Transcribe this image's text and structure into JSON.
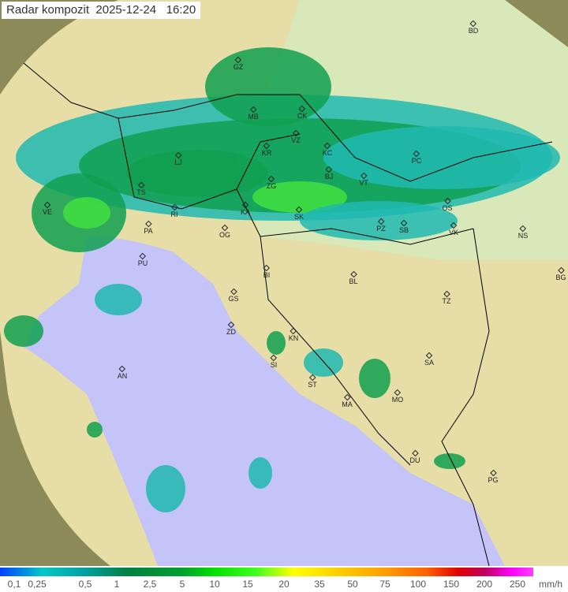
{
  "title": {
    "product": "Radar kompozit",
    "date": "2025-12-24",
    "time": "16:20"
  },
  "legend": {
    "values": [
      "0,1",
      "0,25",
      "0,5",
      "1",
      "2,5",
      "5",
      "10",
      "15",
      "20",
      "35",
      "50",
      "75",
      "100",
      "150",
      "200",
      "250"
    ],
    "unit": "mm/h"
  },
  "cities": [
    "BD",
    "GZ",
    "MB",
    "CK",
    "VZ",
    "KR",
    "KC",
    "PC",
    "LJ",
    "BJ",
    "VT",
    "ZG",
    "TS",
    "OS",
    "VE",
    "RI",
    "KA",
    "SK",
    "PZ",
    "SB",
    "VK",
    "NS",
    "PA",
    "OG",
    "PU",
    "BG",
    "BI",
    "BL",
    "GS",
    "TZ",
    "ZD",
    "KN",
    "SA",
    "SI",
    "AN",
    "ST",
    "MO",
    "MA",
    "DU",
    "PG"
  ],
  "colors": {
    "sea": "#c4c4f8",
    "land": "#e8e0a8",
    "outside": "#8a8a50",
    "rain_light": "#20b8b0",
    "rain_mid": "#10a050",
    "rain_heavy": "#40e040"
  }
}
